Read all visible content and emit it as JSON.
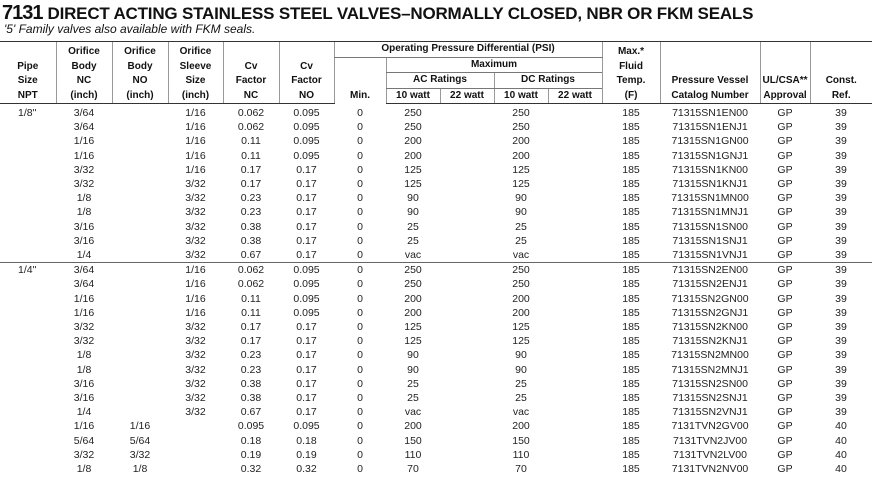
{
  "header": {
    "number": "7131",
    "title": "DIRECT ACTING STAINLESS STEEL VALVES–NORMALLY CLOSED, NBR OR FKM SEALS",
    "subtitle": "'5' Family valves also available with FKM seals."
  },
  "table": {
    "columns": [
      [
        "Pipe",
        "Size",
        "NPT"
      ],
      [
        "Orifice",
        "Body",
        "NC",
        "(inch)"
      ],
      [
        "Orifice",
        "Body",
        "NO",
        "(inch)"
      ],
      [
        "Orifice",
        "Sleeve",
        "Size",
        "(inch)"
      ],
      [
        "Cv",
        "Factor",
        "NC"
      ],
      [
        "Cv",
        "Factor",
        "NO"
      ],
      [
        "Min."
      ],
      [
        "10 watt"
      ],
      [
        "22 watt"
      ],
      [
        "10 watt"
      ],
      [
        "22 watt"
      ],
      [
        "Max.*",
        "Fluid",
        "Temp.",
        "(F)"
      ],
      [
        "Pressure Vessel",
        "Catalog Number"
      ],
      [
        "UL/CSA**",
        "Approval"
      ],
      [
        "Const.",
        "Ref."
      ]
    ],
    "pressure_group": "Operating Pressure Differential (PSI)",
    "maximum": "Maximum",
    "ac_ratings": "AC Ratings",
    "dc_ratings": "DC Ratings",
    "groups": [
      {
        "rows": [
          [
            "1/8\"",
            "3/64",
            null,
            "1/16",
            "0.062",
            "0.095",
            "0",
            "250",
            null,
            "250",
            null,
            "185",
            "71315SN1EN00",
            "GP",
            "39"
          ],
          [
            null,
            "3/64",
            null,
            "1/16",
            "0.062",
            "0.095",
            "0",
            "250",
            null,
            "250",
            null,
            "185",
            "71315SN1ENJ1",
            "GP",
            "39"
          ],
          [
            null,
            "1/16",
            null,
            "1/16",
            "0.11",
            "0.095",
            "0",
            "200",
            null,
            "200",
            null,
            "185",
            "71315SN1GN00",
            "GP",
            "39"
          ],
          [
            null,
            "1/16",
            null,
            "1/16",
            "0.11",
            "0.095",
            "0",
            "200",
            null,
            "200",
            null,
            "185",
            "71315SN1GNJ1",
            "GP",
            "39"
          ],
          [
            null,
            "3/32",
            null,
            "1/16",
            "0.17",
            "0.17",
            "0",
            "125",
            null,
            "125",
            null,
            "185",
            "71315SN1KN00",
            "GP",
            "39"
          ],
          [
            null,
            "3/32",
            null,
            "3/32",
            "0.17",
            "0.17",
            "0",
            "125",
            null,
            "125",
            null,
            "185",
            "71315SN1KNJ1",
            "GP",
            "39"
          ],
          [
            null,
            "1/8",
            null,
            "3/32",
            "0.23",
            "0.17",
            "0",
            "90",
            null,
            "90",
            null,
            "185",
            "71315SN1MN00",
            "GP",
            "39"
          ],
          [
            null,
            "1/8",
            null,
            "3/32",
            "0.23",
            "0.17",
            "0",
            "90",
            null,
            "90",
            null,
            "185",
            "71315SN1MNJ1",
            "GP",
            "39"
          ],
          [
            null,
            "3/16",
            null,
            "3/32",
            "0.38",
            "0.17",
            "0",
            "25",
            null,
            "25",
            null,
            "185",
            "71315SN1SN00",
            "GP",
            "39"
          ],
          [
            null,
            "3/16",
            null,
            "3/32",
            "0.38",
            "0.17",
            "0",
            "25",
            null,
            "25",
            null,
            "185",
            "71315SN1SNJ1",
            "GP",
            "39"
          ],
          [
            null,
            "1/4",
            null,
            "3/32",
            "0.67",
            "0.17",
            "0",
            "vac",
            null,
            "vac",
            null,
            "185",
            "71315SN1VNJ1",
            "GP",
            "39"
          ]
        ]
      },
      {
        "rows": [
          [
            "1/4\"",
            "3/64",
            null,
            "1/16",
            "0.062",
            "0.095",
            "0",
            "250",
            null,
            "250",
            null,
            "185",
            "71315SN2EN00",
            "GP",
            "39"
          ],
          [
            null,
            "3/64",
            null,
            "1/16",
            "0.062",
            "0.095",
            "0",
            "250",
            null,
            "250",
            null,
            "185",
            "71315SN2ENJ1",
            "GP",
            "39"
          ],
          [
            null,
            "1/16",
            null,
            "1/16",
            "0.11",
            "0.095",
            "0",
            "200",
            null,
            "200",
            null,
            "185",
            "71315SN2GN00",
            "GP",
            "39"
          ],
          [
            null,
            "1/16",
            null,
            "1/16",
            "0.11",
            "0.095",
            "0",
            "200",
            null,
            "200",
            null,
            "185",
            "71315SN2GNJ1",
            "GP",
            "39"
          ],
          [
            null,
            "3/32",
            null,
            "3/32",
            "0.17",
            "0.17",
            "0",
            "125",
            null,
            "125",
            null,
            "185",
            "71315SN2KN00",
            "GP",
            "39"
          ],
          [
            null,
            "3/32",
            null,
            "3/32",
            "0.17",
            "0.17",
            "0",
            "125",
            null,
            "125",
            null,
            "185",
            "71315SN2KNJ1",
            "GP",
            "39"
          ],
          [
            null,
            "1/8",
            null,
            "3/32",
            "0.23",
            "0.17",
            "0",
            "90",
            null,
            "90",
            null,
            "185",
            "71315SN2MN00",
            "GP",
            "39"
          ],
          [
            null,
            "1/8",
            null,
            "3/32",
            "0.23",
            "0.17",
            "0",
            "90",
            null,
            "90",
            null,
            "185",
            "71315SN2MNJ1",
            "GP",
            "39"
          ],
          [
            null,
            "3/16",
            null,
            "3/32",
            "0.38",
            "0.17",
            "0",
            "25",
            null,
            "25",
            null,
            "185",
            "71315SN2SN00",
            "GP",
            "39"
          ],
          [
            null,
            "3/16",
            null,
            "3/32",
            "0.38",
            "0.17",
            "0",
            "25",
            null,
            "25",
            null,
            "185",
            "71315SN2SNJ1",
            "GP",
            "39"
          ],
          [
            null,
            "1/4",
            null,
            "3/32",
            "0.67",
            "0.17",
            "0",
            "vac",
            null,
            "vac",
            null,
            "185",
            "71315SN2VNJ1",
            "GP",
            "39"
          ],
          [
            null,
            "1/16",
            "1/16",
            null,
            "0.095",
            "0.095",
            "0",
            "200",
            null,
            "200",
            null,
            "185",
            "7131TVN2GV00",
            "GP",
            "40"
          ],
          [
            null,
            "5/64",
            "5/64",
            null,
            "0.18",
            "0.18",
            "0",
            "150",
            null,
            "150",
            null,
            "185",
            "7131TVN2JV00",
            "GP",
            "40"
          ],
          [
            null,
            "3/32",
            "3/32",
            null,
            "0.19",
            "0.19",
            "0",
            "110",
            null,
            "110",
            null,
            "185",
            "7131TVN2LV00",
            "GP",
            "40"
          ],
          [
            null,
            "1/8",
            "1/8",
            null,
            "0.32",
            "0.32",
            "0",
            "70",
            null,
            "70",
            null,
            "185",
            "7131TVN2NV00",
            "GP",
            "40"
          ]
        ]
      }
    ]
  }
}
